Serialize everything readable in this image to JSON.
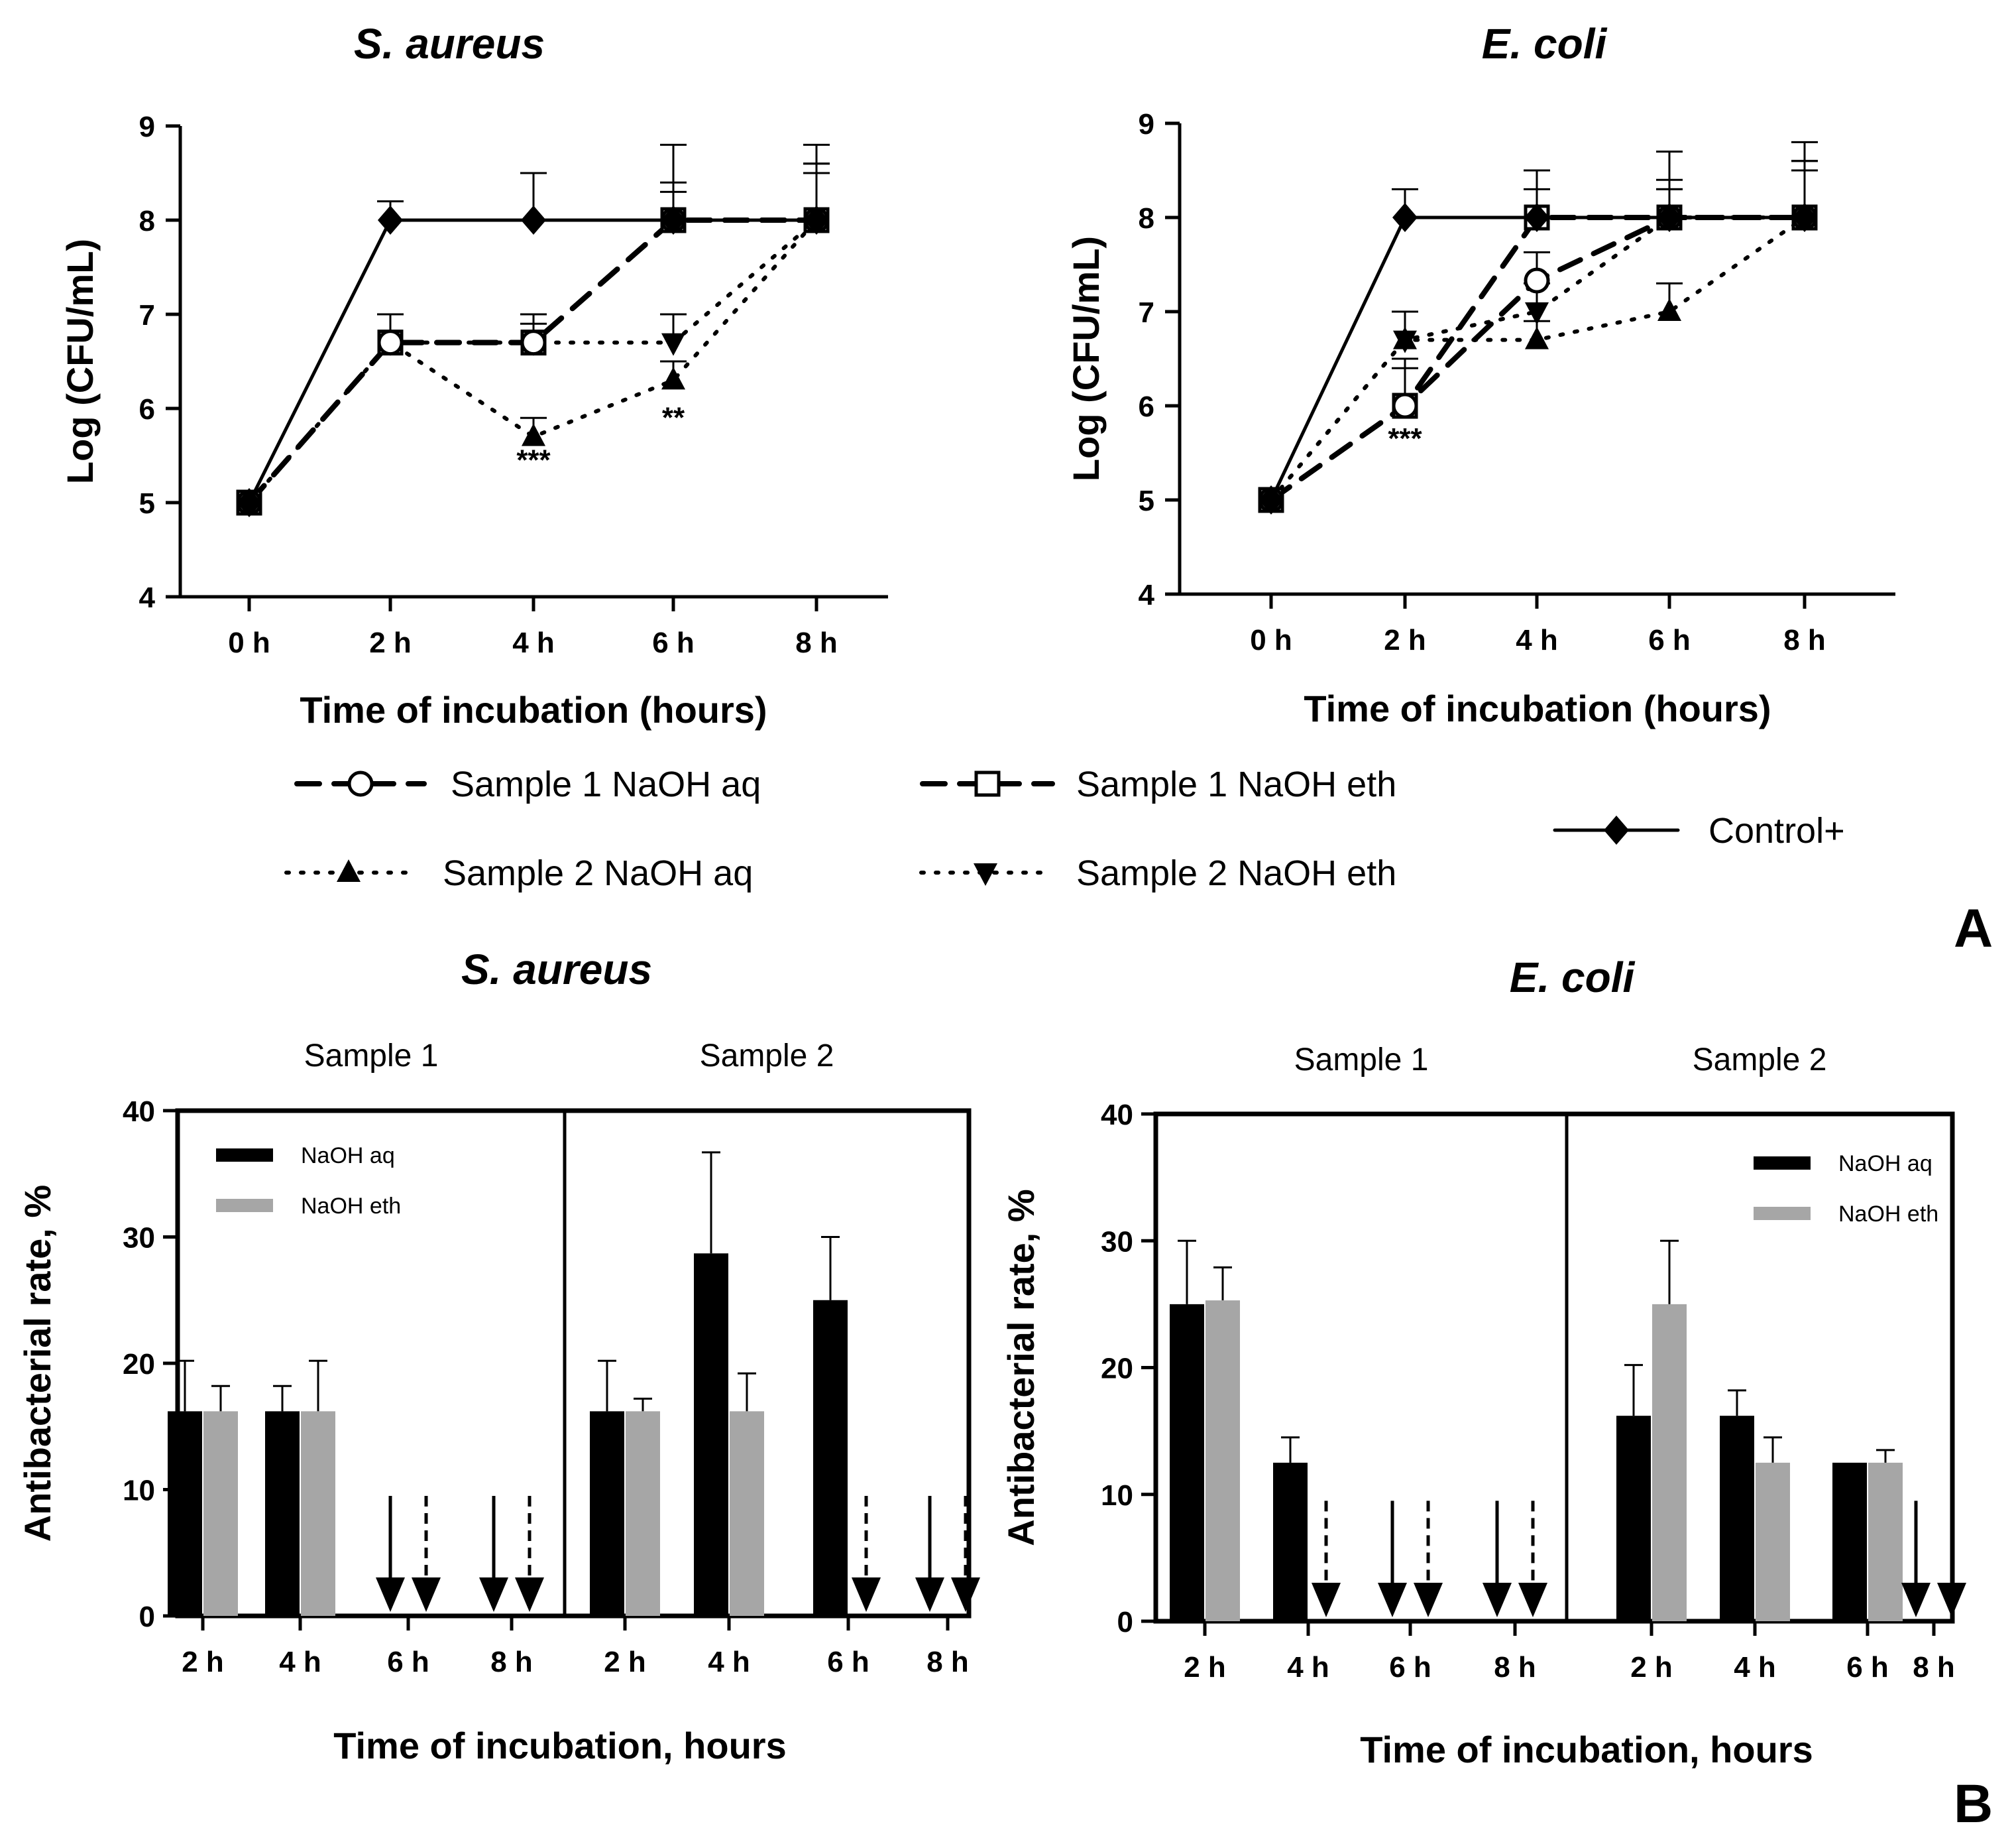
{
  "panel_labels": {
    "a": "A",
    "b": "B"
  },
  "legend_a": [
    {
      "key": "s1_aq",
      "label": "Sample 1 NaOH aq"
    },
    {
      "key": "s1_eth",
      "label": "Sample 1 NaOH eth"
    },
    {
      "key": "control",
      "label": "Control+"
    },
    {
      "key": "s2_aq",
      "label": "Sample 2 NaOH aq"
    },
    {
      "key": "s2_eth",
      "label": "Sample 2 NaOH eth"
    }
  ],
  "colors": {
    "aq": "#000000",
    "eth": "#a6a6a6",
    "line": "#000000"
  },
  "chart_data": [
    {
      "id": "a-saureus",
      "type": "line",
      "title": "S. aureus",
      "xlabel": "Time of incubation (hours)",
      "ylabel": "Log (CFU/mL)",
      "categories": [
        "0 h",
        "2 h",
        "4 h",
        "6 h",
        "8 h"
      ],
      "ylim": [
        4,
        9
      ],
      "yticks": [
        4,
        5,
        6,
        7,
        8,
        9
      ],
      "series": [
        {
          "key": "control",
          "name": "Control+",
          "values": [
            5,
            8,
            8,
            8,
            8
          ],
          "errors": [
            0,
            0.2,
            0.5,
            0.8,
            0.8
          ]
        },
        {
          "key": "s1_aq",
          "name": "Sample 1 NaOH aq",
          "values": [
            5,
            6.7,
            6.7,
            8,
            8
          ],
          "errors": [
            0,
            0.3,
            0.3,
            0.4,
            0.6
          ]
        },
        {
          "key": "s1_eth",
          "name": "Sample 1 NaOH eth",
          "values": [
            5,
            6.7,
            6.7,
            8,
            8
          ],
          "errors": [
            0,
            0.3,
            0.2,
            0.3,
            0.5
          ]
        },
        {
          "key": "s2_aq",
          "name": "Sample 2 NaOH aq",
          "values": [
            5,
            6.7,
            5.7,
            6.3,
            8
          ],
          "errors": [
            0,
            0.3,
            0.2,
            0.2,
            0.6
          ]
        },
        {
          "key": "s2_eth",
          "name": "Sample 2 NaOH eth",
          "values": [
            5,
            6.7,
            6.7,
            6.7,
            8
          ],
          "errors": [
            0,
            0.3,
            0.3,
            0.3,
            0.5
          ]
        }
      ],
      "annotations": [
        {
          "x": "4 h",
          "y": 5.35,
          "text": "***"
        },
        {
          "x": "6 h",
          "y": 5.8,
          "text": "**"
        }
      ]
    },
    {
      "id": "a-ecoli",
      "type": "line",
      "title": "E. coli",
      "xlabel": "Time of incubation (hours)",
      "ylabel": "Log (CFU/mL)",
      "categories": [
        "0 h",
        "2 h",
        "4 h",
        "6 h",
        "8 h"
      ],
      "ylim": [
        4,
        9
      ],
      "yticks": [
        4,
        5,
        6,
        7,
        8,
        9
      ],
      "series": [
        {
          "key": "control",
          "name": "Control+",
          "values": [
            5,
            8,
            8,
            8,
            8
          ],
          "errors": [
            0,
            0.3,
            0.5,
            0.7,
            0.8
          ]
        },
        {
          "key": "s1_aq",
          "name": "Sample 1 NaOH aq",
          "values": [
            5,
            6,
            7.33,
            8,
            8
          ],
          "errors": [
            0,
            0.5,
            0.3,
            0.4,
            0.6
          ]
        },
        {
          "key": "s1_eth",
          "name": "Sample 1 NaOH eth",
          "values": [
            5,
            6,
            8,
            8,
            8
          ],
          "errors": [
            0,
            0.4,
            0.3,
            0.3,
            0.5
          ]
        },
        {
          "key": "s2_aq",
          "name": "Sample 2 NaOH aq",
          "values": [
            5,
            6.7,
            6.7,
            7,
            8
          ],
          "errors": [
            0,
            0.3,
            0.2,
            0.3,
            0.6
          ]
        },
        {
          "key": "s2_eth",
          "name": "Sample 2 NaOH eth",
          "values": [
            5,
            6.7,
            7,
            8,
            8
          ],
          "errors": [
            0,
            0.3,
            0.3,
            0.3,
            0.5
          ]
        }
      ],
      "annotations": [
        {
          "x": "2 h",
          "y": 5.55,
          "text": "***"
        }
      ]
    },
    {
      "id": "b-saureus",
      "type": "bar",
      "title": "S. aureus",
      "xlabel": "Time of incubation, hours",
      "ylabel": "Antibacterial rate, %",
      "groups": [
        "Sample 1",
        "Sample 2"
      ],
      "categories": [
        "2 h",
        "4 h",
        "6 h",
        "8 h"
      ],
      "ylim": [
        0,
        40
      ],
      "yticks": [
        0,
        10,
        20,
        30,
        40
      ],
      "legend": {
        "aq": "NaOH aq",
        "eth": "NaOH eth"
      },
      "legend_position": "top-left",
      "series": [
        {
          "key": "aq",
          "name": "NaOH aq",
          "group_values": [
            [
              16.2,
              16.2,
              0,
              0
            ],
            [
              16.2,
              28.7,
              25,
              0
            ]
          ],
          "group_errors": [
            [
              4,
              2,
              0,
              0
            ],
            [
              4,
              8,
              5,
              0
            ]
          ]
        },
        {
          "key": "eth",
          "name": "NaOH eth",
          "group_values": [
            [
              16.2,
              16.2,
              0,
              0
            ],
            [
              16.2,
              16.2,
              0,
              0
            ]
          ],
          "group_errors": [
            [
              2,
              4,
              0,
              0
            ],
            [
              1,
              3,
              0,
              0
            ]
          ]
        }
      ],
      "zero_arrows": "Down arrows mark 0% (solid = NaOH aq, dashed = NaOH eth)"
    },
    {
      "id": "b-ecoli",
      "type": "bar",
      "title": "E. coli",
      "xlabel": "Time of incubation, hours",
      "ylabel": "Antibacterial rate, %",
      "groups": [
        "Sample 1",
        "Sample 2"
      ],
      "categories": [
        "2 h",
        "4 h",
        "6 h",
        "8 h"
      ],
      "ylim": [
        0,
        40
      ],
      "yticks": [
        0,
        10,
        20,
        30,
        40
      ],
      "legend": {
        "aq": "NaOH aq",
        "eth": "NaOH eth"
      },
      "legend_position": "top-right",
      "series": [
        {
          "key": "aq",
          "name": "NaOH aq",
          "group_values": [
            [
              25,
              12.5,
              0,
              0
            ],
            [
              16.2,
              16.2,
              12.5,
              0
            ]
          ],
          "group_errors": [
            [
              5,
              2,
              0,
              0
            ],
            [
              4,
              2,
              0,
              0
            ]
          ]
        },
        {
          "key": "eth",
          "name": "NaOH eth",
          "group_values": [
            [
              25.3,
              0,
              0,
              0
            ],
            [
              25,
              12.5,
              12.5,
              0
            ]
          ],
          "group_errors": [
            [
              2.6,
              0,
              0,
              0
            ],
            [
              5,
              2,
              1,
              0
            ]
          ]
        }
      ],
      "zero_arrows": "Down arrows mark 0% (solid = NaOH aq, dashed = NaOH eth)"
    }
  ]
}
